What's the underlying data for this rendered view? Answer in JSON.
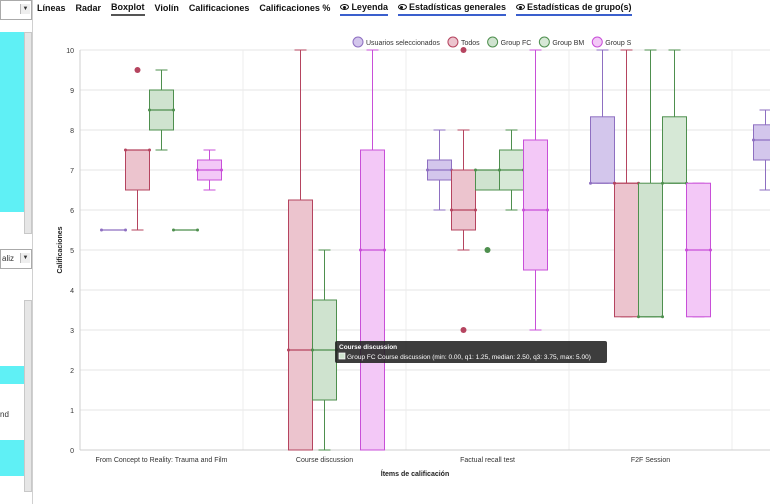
{
  "left_panel": {
    "select_text": "aliz",
    "partial_text": "nd"
  },
  "tabs": [
    {
      "label": "Líneas"
    },
    {
      "label": "Radar"
    },
    {
      "label": "Boxplot"
    },
    {
      "label": "Violín"
    },
    {
      "label": "Calificaciones"
    },
    {
      "label": "Calificaciones %"
    },
    {
      "label": "Leyenda"
    },
    {
      "label": "Estadísticas generales"
    },
    {
      "label": "Estadísticas de grupo(s)"
    }
  ],
  "chart_data": {
    "type": "boxplot",
    "ylabel": "Calificaciones",
    "xlabel": "Ítems de calificación",
    "ylim": [
      0,
      10
    ],
    "yticks": [
      0,
      1,
      2,
      3,
      4,
      5,
      6,
      7,
      8,
      9,
      10
    ],
    "grid": true,
    "legend_position": "top-right",
    "categories": [
      "From Concept to Reality: Trauma and Film",
      "Course discussion",
      "Factual recall test",
      "F2F Session",
      ""
    ],
    "series": [
      {
        "name": "Usuarios seleccionados",
        "color": "#8e6fc1",
        "fill": "#d3c6ec",
        "boxes": [
          {
            "min": 5.5,
            "q1": 5.5,
            "median": 5.5,
            "q3": 5.5,
            "max": 5.5,
            "outliers": []
          },
          null,
          {
            "min": 6,
            "q1": 6.75,
            "median": 7,
            "q3": 7.25,
            "max": 8,
            "outliers": []
          },
          {
            "min": 6.67,
            "q1": 6.67,
            "median": 6.67,
            "q3": 8.33,
            "max": 10,
            "outliers": []
          },
          {
            "min": 6.5,
            "q1": 7.25,
            "median": 7.75,
            "q3": 8.13,
            "max": 8.5,
            "outliers": []
          }
        ]
      },
      {
        "name": "Todos",
        "color": "#b5445f",
        "fill": "#ecc4ce",
        "boxes": [
          {
            "min": 5.5,
            "q1": 6.5,
            "median": 7.5,
            "q3": 7.5,
            "max": 7.5,
            "outliers": [
              9.5
            ]
          },
          {
            "min": 0,
            "q1": 0,
            "median": 2.5,
            "q3": 6.25,
            "max": 10,
            "outliers": []
          },
          {
            "min": 5,
            "q1": 5.5,
            "median": 6,
            "q3": 7,
            "max": 8,
            "outliers": [
              3,
              10
            ]
          },
          {
            "min": 3.33,
            "q1": 3.33,
            "median": 6.67,
            "q3": 6.67,
            "max": 10,
            "outliers": []
          },
          null
        ]
      },
      {
        "name": "Group FC",
        "color": "#4e8f4e",
        "fill": "#cfe3cf",
        "boxes": [
          {
            "min": 7.5,
            "q1": 8,
            "median": 8.5,
            "q3": 9,
            "max": 9.5,
            "outliers": []
          },
          {
            "min": 0,
            "q1": 1.25,
            "median": 2.5,
            "q3": 3.75,
            "max": 5,
            "outliers": []
          },
          {
            "min": 6.5,
            "q1": 6.5,
            "median": 7,
            "q3": 7,
            "max": 7,
            "outliers": [
              5
            ]
          },
          {
            "min": 3.33,
            "q1": 3.33,
            "median": 3.33,
            "q3": 6.67,
            "max": 10,
            "outliers": []
          },
          null
        ]
      },
      {
        "name": "Group BM",
        "color": "#4e8f4e",
        "fill": "#d6e8d6",
        "boxes": [
          {
            "min": 5.5,
            "q1": 5.5,
            "median": 5.5,
            "q3": 5.5,
            "max": 5.5,
            "outliers": []
          },
          null,
          {
            "min": 6,
            "q1": 6.5,
            "median": 7,
            "q3": 7.5,
            "max": 8,
            "outliers": []
          },
          {
            "min": 6.67,
            "q1": 6.67,
            "median": 6.67,
            "q3": 8.33,
            "max": 10,
            "outliers": []
          },
          null
        ]
      },
      {
        "name": "Group S",
        "color": "#c84fd8",
        "fill": "#f3c8f7",
        "boxes": [
          {
            "min": 6.5,
            "q1": 6.75,
            "median": 7,
            "q3": 7.25,
            "max": 7.5,
            "outliers": []
          },
          {
            "min": 0,
            "q1": 0,
            "median": 5,
            "q3": 7.5,
            "max": 10,
            "outliers": []
          },
          {
            "min": 3,
            "q1": 4.5,
            "median": 6,
            "q3": 7.75,
            "max": 10,
            "outliers": []
          },
          {
            "min": 3.33,
            "q1": 3.33,
            "median": 5,
            "q3": 6.67,
            "max": 6.67,
            "outliers": []
          },
          null
        ]
      }
    ],
    "tooltip": {
      "title": "Course discussion",
      "text": "Group FC Course discussion (min: 0.00, q1: 1.25, median: 2.50, q3: 3.75, max: 5.00)"
    }
  }
}
